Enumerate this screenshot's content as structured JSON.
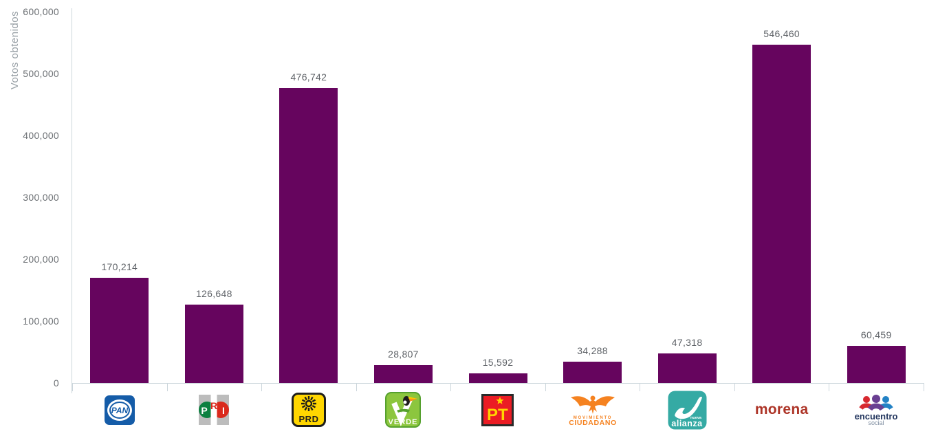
{
  "chart_data": {
    "type": "bar",
    "title": "",
    "xlabel": "",
    "ylabel": "Votos obtenidos",
    "ylim": [
      0,
      600000
    ],
    "grid": false,
    "legend": false,
    "yticks": [
      {
        "value": 600000,
        "label": "600,000"
      },
      {
        "value": 500000,
        "label": "500,000"
      },
      {
        "value": 400000,
        "label": "400,000"
      },
      {
        "value": 300000,
        "label": "300,000"
      },
      {
        "value": 200000,
        "label": "200,000"
      },
      {
        "value": 100000,
        "label": "100,000"
      },
      {
        "value": 0,
        "label": "0"
      }
    ],
    "categories": [
      {
        "id": "pan",
        "party": "PAN",
        "value": 170214,
        "value_label": "170,214",
        "logo_text": [
          "PAN"
        ]
      },
      {
        "id": "pri",
        "party": "PRI",
        "value": 126648,
        "value_label": "126,648",
        "logo_text": [
          "P",
          "R",
          "I"
        ]
      },
      {
        "id": "prd",
        "party": "PRD",
        "value": 476742,
        "value_label": "476,742",
        "logo_text": [
          "PRD"
        ]
      },
      {
        "id": "verde",
        "party": "VERDE",
        "value": 28807,
        "value_label": "28,807",
        "logo_text": [
          "VERDE"
        ]
      },
      {
        "id": "pt",
        "party": "PT",
        "value": 15592,
        "value_label": "15,592",
        "logo_text": [
          "PT"
        ]
      },
      {
        "id": "mc",
        "party": "MOVIMIENTO CIUDADANO",
        "value": 34288,
        "value_label": "34,288",
        "logo_text": [
          "MOVIMIENTO",
          "CIUDADANO"
        ]
      },
      {
        "id": "na",
        "party": "nueva alianza",
        "value": 47318,
        "value_label": "47,318",
        "logo_text": [
          "nueva",
          "alianza"
        ]
      },
      {
        "id": "morena",
        "party": "morena",
        "value": 546460,
        "value_label": "546,460",
        "logo_text": [
          "morena"
        ]
      },
      {
        "id": "es",
        "party": "encuentro social",
        "value": 60459,
        "value_label": "60,459",
        "logo_text": [
          "encuentro",
          "social"
        ]
      }
    ],
    "colors": {
      "bar": "#66055e",
      "axis_line": "#ccd6dc",
      "tick_label": "#6b6f73",
      "data_label": "#5f6368",
      "axis_title": "#98a0a6",
      "background": "#ffffff"
    },
    "brand_colors": {
      "pan_blue": "#155ca8",
      "pri_green": "#0c8040",
      "pri_red": "#da291c",
      "pri_gray": "#bcbcbc",
      "prd_yellow": "#ffd600",
      "prd_black": "#1d1d1b",
      "verde_green": "#8cc63e",
      "verde_dark": "#55a02e",
      "pt_red": "#eb1c24",
      "pt_yellow": "#ffd400",
      "pt_black": "#2a2a2a",
      "mc_orange": "#f58220",
      "na_teal": "#35aaa4",
      "morena_maroon": "#ad3427",
      "es_navy": "#24375f",
      "es_red": "#d7282f",
      "es_purple": "#6a3f92",
      "es_blue": "#2382c5",
      "es_gray": "#7e8da0"
    }
  }
}
